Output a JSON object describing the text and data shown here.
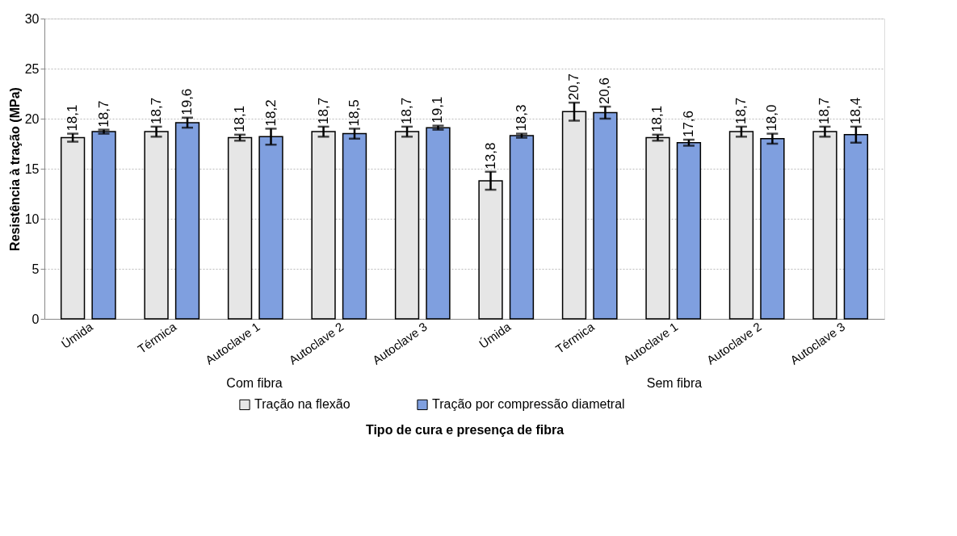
{
  "chart_data": {
    "type": "bar",
    "categories": [
      "Úmida",
      "Térmica",
      "Autoclave 1",
      "Autoclave 2",
      "Autoclave 3",
      "Úmida",
      "Térmica",
      "Autoclave 1",
      "Autoclave 2",
      "Autoclave 3"
    ],
    "series": [
      {
        "name": "Tração na flexão",
        "color": "#e6e6e6",
        "values": [
          18.1,
          18.7,
          18.1,
          18.7,
          18.7,
          13.8,
          20.7,
          18.1,
          18.7,
          18.7
        ],
        "value_labels": [
          "18,1",
          "18,7",
          "18,1",
          "18,7",
          "18,7",
          "13,8",
          "20,7",
          "18,1",
          "18,7",
          "18,7"
        ],
        "errors": [
          0.4,
          0.5,
          0.3,
          0.5,
          0.5,
          0.9,
          0.9,
          0.3,
          0.5,
          0.5
        ]
      },
      {
        "name": "Tração por compressão diametral",
        "color": "#7f9fdf",
        "values": [
          18.7,
          19.6,
          18.2,
          18.5,
          19.1,
          18.3,
          20.6,
          17.6,
          18.0,
          18.4
        ],
        "value_labels": [
          "18,7",
          "19,6",
          "18,2",
          "18,5",
          "19,1",
          "18,3",
          "20,6",
          "17,6",
          "18,0",
          "18,4"
        ],
        "errors": [
          0.2,
          0.5,
          0.8,
          0.5,
          0.2,
          0.2,
          0.6,
          0.3,
          0.5,
          0.8
        ]
      }
    ],
    "ylabel": "Resistência à tração (MPa)",
    "xlabel": "Tipo de cura e presença de fibra",
    "annotations": [
      "Com fibra",
      "Sem fibra"
    ],
    "ylim": [
      0,
      30
    ],
    "yticks": [
      0,
      5,
      10,
      15,
      20,
      25,
      30
    ],
    "grid": "y",
    "legend": "bottom"
  }
}
